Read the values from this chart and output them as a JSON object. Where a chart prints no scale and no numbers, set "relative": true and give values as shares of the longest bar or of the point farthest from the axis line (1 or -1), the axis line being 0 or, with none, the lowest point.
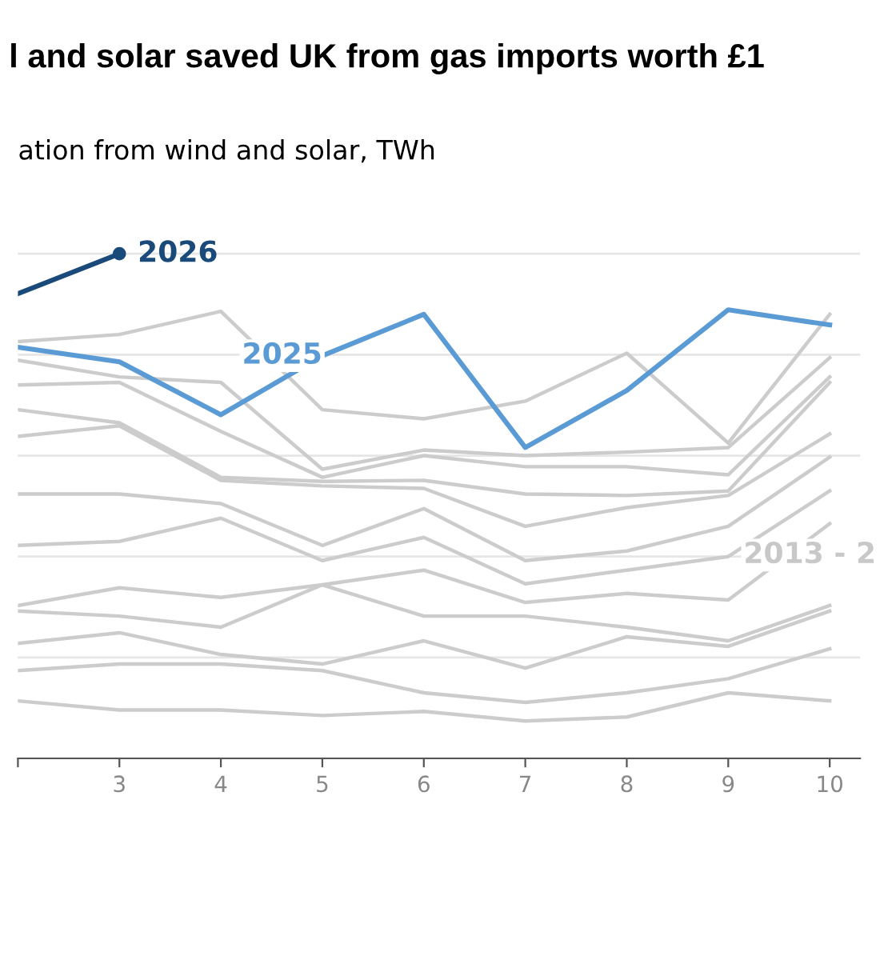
{
  "chart_data": {
    "type": "line",
    "relative": true,
    "title": "l and solar saved UK from gas imports worth £1",
    "subtitle": "ation from wind and solar, TWh",
    "x": [
      2,
      3,
      4,
      5,
      6,
      7,
      8,
      9,
      10
    ],
    "xlim": [
      2,
      10.3
    ],
    "xticks": [
      {
        "value": 2,
        "label": null
      },
      3,
      4,
      5,
      6,
      7,
      8,
      9,
      10
    ],
    "grid": "y",
    "legend": false,
    "series": [
      {
        "color": "#cccccc",
        "values": [
          0.826,
          0.84,
          0.886,
          0.691,
          0.673,
          0.708,
          0.803,
          0.625,
          0.88
        ]
      },
      {
        "color": "#cccccc",
        "values": [
          0.789,
          0.756,
          0.745,
          0.573,
          0.611,
          0.6,
          0.607,
          0.616,
          0.794
        ]
      },
      {
        "color": "#cccccc",
        "values": [
          0.74,
          0.745,
          0.648,
          0.557,
          0.6,
          0.578,
          0.578,
          0.562,
          0.756
        ]
      },
      {
        "color": "#cccccc",
        "values": [
          0.691,
          0.665,
          0.557,
          0.549,
          0.551,
          0.524,
          0.521,
          0.53,
          0.745
        ]
      },
      {
        "color": "#cccccc",
        "values": [
          0.638,
          0.659,
          0.551,
          0.54,
          0.535,
          0.46,
          0.497,
          0.521,
          0.643
        ]
      },
      {
        "color": "#cccccc",
        "values": [
          0.524,
          0.524,
          0.505,
          0.422,
          0.495,
          0.392,
          0.411,
          0.46,
          0.597
        ]
      },
      {
        "color": "#cccccc",
        "values": [
          0.422,
          0.43,
          0.476,
          0.392,
          0.438,
          0.346,
          0.373,
          0.4,
          0.53
        ]
      },
      {
        "color": "#cccccc",
        "values": [
          0.303,
          0.338,
          0.319,
          0.344,
          0.373,
          0.309,
          0.327,
          0.314,
          0.465
        ]
      },
      {
        "color": "#cccccc",
        "values": [
          0.292,
          0.282,
          0.26,
          0.344,
          0.282,
          0.282,
          0.26,
          0.233,
          0.303
        ]
      },
      {
        "color": "#cccccc",
        "values": [
          0.228,
          0.249,
          0.206,
          0.187,
          0.233,
          0.179,
          0.241,
          0.222,
          0.292
        ]
      },
      {
        "color": "#cccccc",
        "values": [
          0.174,
          0.187,
          0.187,
          0.174,
          0.13,
          0.111,
          0.13,
          0.158,
          0.217
        ]
      },
      {
        "color": "#cccccc",
        "values": [
          0.114,
          0.096,
          0.096,
          0.085,
          0.093,
          0.074,
          0.082,
          0.13,
          0.114
        ]
      },
      {
        "name": "2025",
        "color": "#5b9bd5",
        "values": [
          0.815,
          0.786,
          0.681,
          0.798,
          0.88,
          0.616,
          0.729,
          0.889,
          0.859
        ]
      },
      {
        "name": "2026",
        "color": "#1a4a7a",
        "x": [
          2,
          3
        ],
        "values": [
          0.921,
          1.0
        ],
        "marker": "circle"
      }
    ],
    "annotations": [
      {
        "text": "2013 - 2",
        "x": 9.15,
        "y": 0.403
      }
    ]
  }
}
